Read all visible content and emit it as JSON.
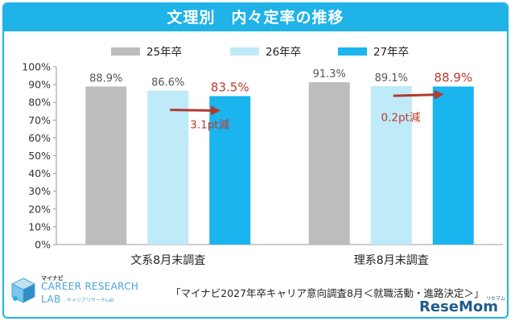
{
  "header": {
    "title": "文理別　内々定率の推移"
  },
  "chart_data": {
    "type": "bar",
    "title": "文理別　内々定率の推移",
    "categories": [
      "文系8月末調査",
      "理系8月末調査"
    ],
    "series": [
      {
        "name": "25年卒",
        "values": [
          88.9,
          91.3
        ],
        "labels": [
          "88.9%",
          "91.3%"
        ],
        "color": "#bdbdbd",
        "label_color": "#555555"
      },
      {
        "name": "26年卒",
        "values": [
          86.6,
          89.1
        ],
        "labels": [
          "86.6%",
          "89.1%"
        ],
        "color": "#bfeaf8",
        "label_color": "#555555"
      },
      {
        "name": "27年卒",
        "values": [
          83.5,
          88.9
        ],
        "labels": [
          "83.5%",
          "88.9%"
        ],
        "color": "#1ab4ee",
        "label_color": "#c0392b"
      }
    ],
    "ylim": [
      0,
      100
    ],
    "yticks": [
      "0%",
      "10%",
      "20%",
      "30%",
      "40%",
      "50%",
      "60%",
      "70%",
      "80%",
      "90%",
      "100%"
    ],
    "legend_position": "top",
    "grid": false,
    "annotations": [
      {
        "category": 0,
        "text": "3.1pt減",
        "color": "#c0392b"
      },
      {
        "category": 1,
        "text": "0.2pt減",
        "color": "#c0392b"
      }
    ]
  },
  "logo": {
    "kana": "マイナビ",
    "line1": "CAREER RESEARCH",
    "line2": "LAB",
    "line2_kana": "キャリアリサーチLab"
  },
  "source_note": "「マイナビ2027年卒キャリア意向調査8月＜就職活動・進路決定＞」",
  "watermark": {
    "main": "ReseMom",
    "small": "リセマム"
  },
  "colors": {
    "accent": "#1fb3e8",
    "arrow": "#b03a2e"
  }
}
